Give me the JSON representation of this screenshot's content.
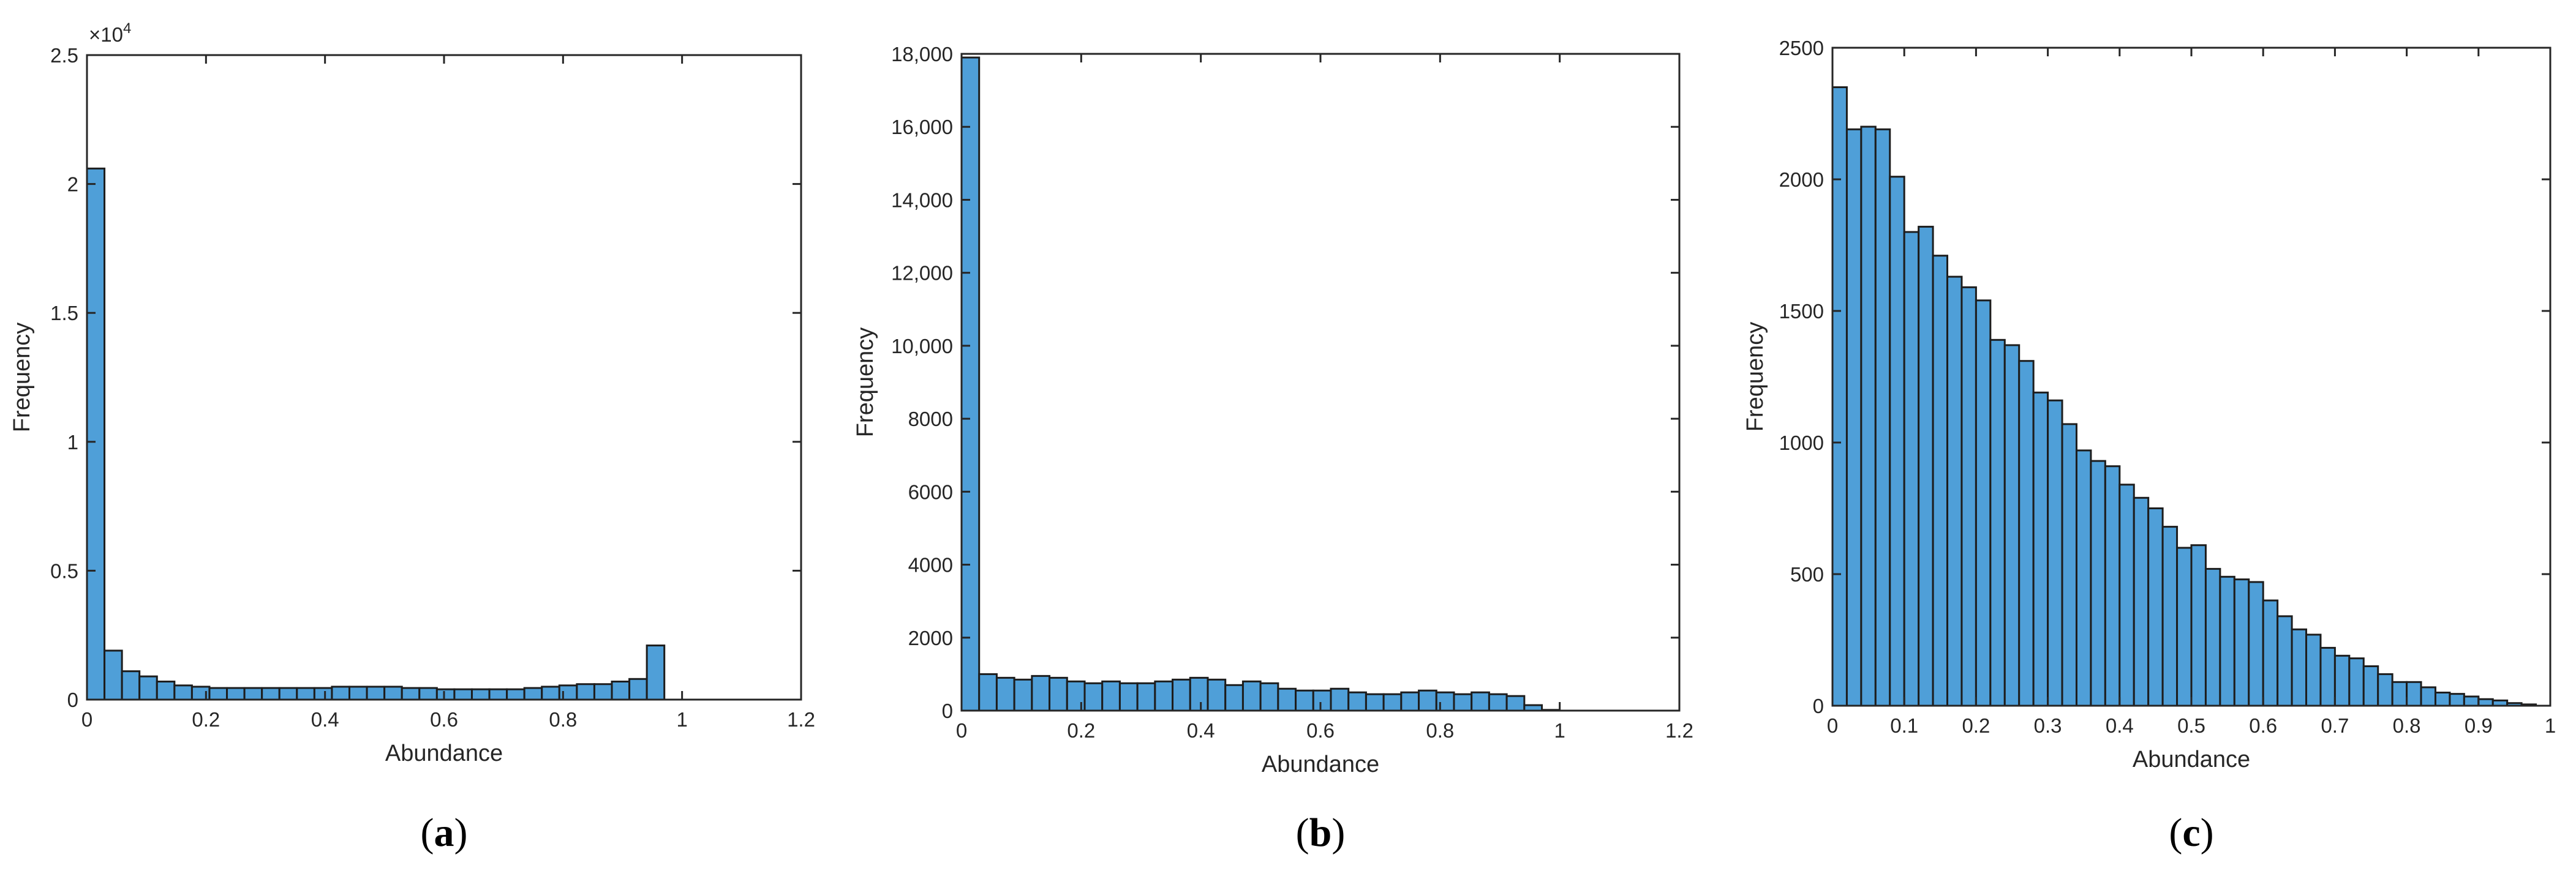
{
  "chart_data": [
    {
      "type": "bar",
      "panel": "a",
      "caption_open": "(",
      "caption_letter": "a",
      "caption_close": ")",
      "xlabel": "Abundance",
      "ylabel": "Frequency",
      "y_multiplier_label": "×10",
      "y_multiplier_exp": "4",
      "xlim": [
        0,
        1.2
      ],
      "ylim": [
        0,
        2.5
      ],
      "xticks": [
        0,
        0.2,
        0.4,
        0.6,
        0.8,
        1,
        1.2
      ],
      "xtick_labels": [
        "0",
        "0.2",
        "0.4",
        "0.6",
        "0.8",
        "1",
        "1.2"
      ],
      "yticks": [
        0,
        0.5,
        1,
        1.5,
        2,
        2.5
      ],
      "ytick_labels": [
        "0",
        "0.5",
        "1",
        "1.5",
        "2",
        "2.5"
      ],
      "bin_start": 0,
      "bin_width": 0.0294,
      "values": [
        2.06,
        0.19,
        0.11,
        0.09,
        0.07,
        0.055,
        0.05,
        0.045,
        0.045,
        0.045,
        0.045,
        0.045,
        0.045,
        0.045,
        0.05,
        0.05,
        0.05,
        0.05,
        0.045,
        0.045,
        0.04,
        0.04,
        0.04,
        0.04,
        0.04,
        0.045,
        0.05,
        0.055,
        0.06,
        0.06,
        0.07,
        0.08,
        0.21
      ],
      "bar_color": "#4f9fd8",
      "edge_color": "#1d1d1d"
    },
    {
      "type": "bar",
      "panel": "b",
      "caption_open": "(",
      "caption_letter": "b",
      "caption_close": ")",
      "xlabel": "Abundance",
      "ylabel": "Frequency",
      "xlim": [
        0,
        1.2
      ],
      "ylim": [
        0,
        18000
      ],
      "xticks": [
        0,
        0.2,
        0.4,
        0.6,
        0.8,
        1,
        1.2
      ],
      "xtick_labels": [
        "0",
        "0.2",
        "0.4",
        "0.6",
        "0.8",
        "1",
        "1.2"
      ],
      "yticks": [
        0,
        2000,
        4000,
        6000,
        8000,
        10000,
        12000,
        14000,
        16000,
        18000
      ],
      "ytick_labels": [
        "0",
        "2000",
        "4000",
        "6000",
        "8000",
        "10,000",
        "12,000",
        "14,000",
        "16,000",
        "18,000"
      ],
      "bin_start": 0,
      "bin_width": 0.0294,
      "values": [
        17900,
        1000,
        900,
        850,
        950,
        900,
        800,
        750,
        800,
        750,
        750,
        800,
        850,
        900,
        850,
        700,
        800,
        750,
        600,
        550,
        550,
        600,
        500,
        450,
        450,
        500,
        550,
        500,
        450,
        500,
        450,
        400,
        150,
        20
      ],
      "bar_color": "#4f9fd8",
      "edge_color": "#1d1d1d"
    },
    {
      "type": "bar",
      "panel": "c",
      "caption_open": "(",
      "caption_letter": "c",
      "caption_close": ")",
      "xlabel": "Abundance",
      "ylabel": "Frequency",
      "xlim": [
        0,
        1
      ],
      "ylim": [
        0,
        2500
      ],
      "xticks": [
        0,
        0.1,
        0.2,
        0.3,
        0.4,
        0.5,
        0.6,
        0.7,
        0.8,
        0.9,
        1
      ],
      "xtick_labels": [
        "0",
        "0.1",
        "0.2",
        "0.3",
        "0.4",
        "0.5",
        "0.6",
        "0.7",
        "0.8",
        "0.9",
        "1"
      ],
      "yticks": [
        0,
        500,
        1000,
        1500,
        2000,
        2500
      ],
      "ytick_labels": [
        "0",
        "500",
        "1000",
        "1500",
        "2000",
        "2500"
      ],
      "bin_start": 0,
      "bin_width": 0.02,
      "values": [
        2350,
        2190,
        2200,
        2190,
        2010,
        1800,
        1820,
        1710,
        1630,
        1590,
        1540,
        1390,
        1370,
        1310,
        1190,
        1160,
        1070,
        970,
        930,
        910,
        840,
        790,
        750,
        680,
        600,
        610,
        520,
        490,
        480,
        470,
        400,
        340,
        290,
        270,
        220,
        190,
        180,
        150,
        120,
        90,
        90,
        70,
        50,
        45,
        35,
        25,
        20,
        10,
        5
      ],
      "bar_color": "#4f9fd8",
      "edge_color": "#1d1d1d"
    }
  ]
}
